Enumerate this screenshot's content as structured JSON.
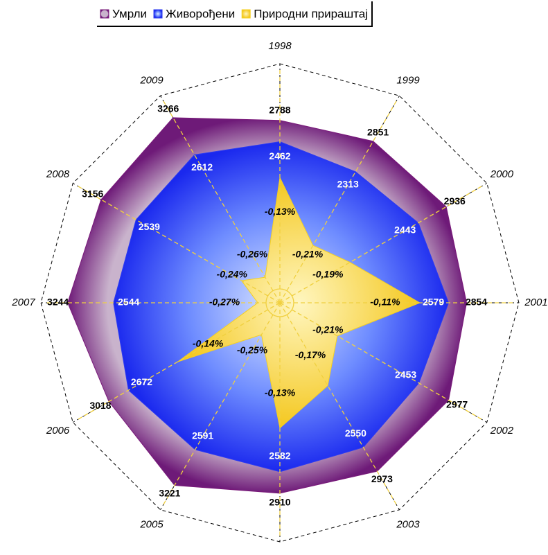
{
  "chart_data": {
    "type": "radar",
    "categories": [
      "1998",
      "1999",
      "2000",
      "2001",
      "2002",
      "2003",
      "2004",
      "2005",
      "2006",
      "2007",
      "2008",
      "2009"
    ],
    "series": [
      {
        "name": "Умрли",
        "color": "#7a1a7a",
        "values": [
          2788,
          2851,
          2936,
          2854,
          2977,
          2973,
          2910,
          3221,
          3018,
          3244,
          3156,
          3266
        ]
      },
      {
        "name": "Живорођени",
        "color": "#2e3cf0",
        "values": [
          2462,
          2313,
          2443,
          2579,
          2453,
          2550,
          2582,
          2591,
          2672,
          2544,
          2539,
          2612
        ]
      },
      {
        "name": "Природни прираштај",
        "color": "#f5d020",
        "axis": "y2",
        "values": [
          -0.13,
          -0.21,
          -0.19,
          -0.11,
          -0.21,
          -0.17,
          -0.13,
          -0.25,
          -0.14,
          -0.27,
          -0.24,
          -0.26
        ],
        "value_labels": [
          "-0,13%",
          "-0,21%",
          "-0,19%",
          "-0,11%",
          "-0,21%",
          "-0,17%",
          "-0,13%",
          "-0,25%",
          "-0,14%",
          "-0,27%",
          "-0,24%",
          "-0,26%"
        ]
      }
    ],
    "ylim": [
      0,
      3600
    ],
    "y2lim": [
      -0.3,
      0.02
    ],
    "legend": "top"
  }
}
